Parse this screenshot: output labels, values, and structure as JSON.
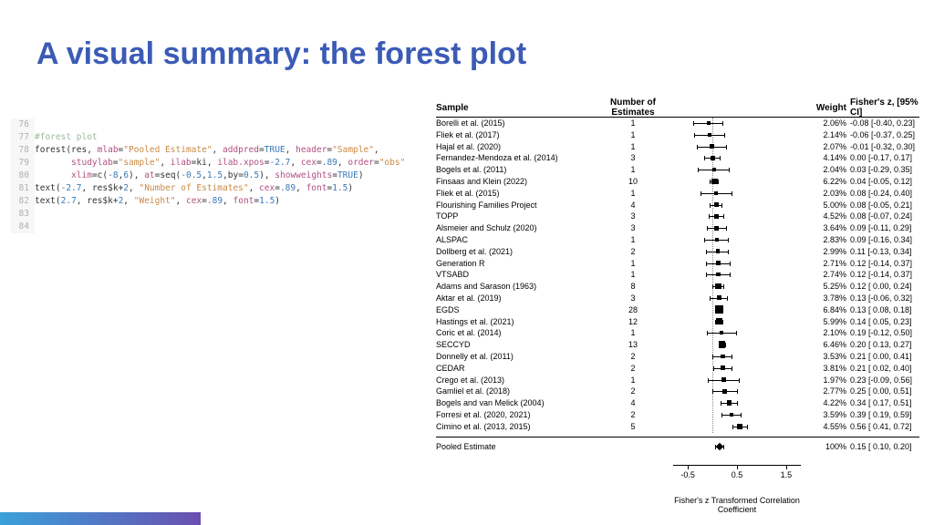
{
  "title": "A visual summary: the forest plot",
  "code": {
    "lines": [
      {
        "n": "76",
        "seg": [
          [
            "kw",
            ""
          ]
        ]
      },
      {
        "n": "77",
        "seg": [
          [
            "cmt",
            "#forest plot"
          ]
        ]
      },
      {
        "n": "78",
        "seg": [
          [
            "fn",
            "forest"
          ],
          [
            "kw",
            "(res, "
          ],
          [
            "arg",
            "mlab"
          ],
          [
            "kw",
            "="
          ],
          [
            "str",
            "\"Pooled Estimate\""
          ],
          [
            "kw",
            ", "
          ],
          [
            "arg",
            "addpred"
          ],
          [
            "kw",
            "="
          ],
          [
            "bool",
            "TRUE"
          ],
          [
            "kw",
            ", "
          ],
          [
            "arg",
            "header"
          ],
          [
            "kw",
            "="
          ],
          [
            "str",
            "\"Sample\""
          ],
          [
            "kw",
            ", "
          ]
        ]
      },
      {
        "n": "79",
        "seg": [
          [
            "kw",
            "       "
          ],
          [
            "arg",
            "studylab"
          ],
          [
            "kw",
            "="
          ],
          [
            "str",
            "\"sample\""
          ],
          [
            "kw",
            ", "
          ],
          [
            "arg",
            "ilab"
          ],
          [
            "kw",
            "=ki, "
          ],
          [
            "arg",
            "ilab.xpos"
          ],
          [
            "kw",
            "="
          ],
          [
            "num",
            "-2.7"
          ],
          [
            "kw",
            ", "
          ],
          [
            "arg",
            "cex"
          ],
          [
            "kw",
            "="
          ],
          [
            "num",
            ".89"
          ],
          [
            "kw",
            ", "
          ],
          [
            "arg",
            "order"
          ],
          [
            "kw",
            "="
          ],
          [
            "str",
            "\"obs\""
          ]
        ]
      },
      {
        "n": "80",
        "seg": [
          [
            "kw",
            "       "
          ],
          [
            "arg",
            "xlim"
          ],
          [
            "kw",
            "=c("
          ],
          [
            "num",
            "-8"
          ],
          [
            "kw",
            ","
          ],
          [
            "num",
            "6"
          ],
          [
            "kw",
            "), "
          ],
          [
            "arg",
            "at"
          ],
          [
            "kw",
            "=seq("
          ],
          [
            "num",
            "-0.5"
          ],
          [
            "kw",
            ","
          ],
          [
            "num",
            "1.5"
          ],
          [
            "kw",
            ",by="
          ],
          [
            "num",
            "0.5"
          ],
          [
            "kw",
            "), "
          ],
          [
            "arg",
            "showweights"
          ],
          [
            "kw",
            "="
          ],
          [
            "bool",
            "TRUE"
          ],
          [
            "kw",
            ")"
          ]
        ]
      },
      {
        "n": "81",
        "seg": [
          [
            "fn",
            "text"
          ],
          [
            "kw",
            "("
          ],
          [
            "num",
            "-2.7"
          ],
          [
            "kw",
            ", res$k+"
          ],
          [
            "num",
            "2"
          ],
          [
            "kw",
            ", "
          ],
          [
            "str",
            "\"Number of Estimates\""
          ],
          [
            "kw",
            ", "
          ],
          [
            "arg",
            "cex"
          ],
          [
            "kw",
            "="
          ],
          [
            "num",
            ".89"
          ],
          [
            "kw",
            ", "
          ],
          [
            "arg",
            "font"
          ],
          [
            "kw",
            "="
          ],
          [
            "num",
            "1.5"
          ],
          [
            "kw",
            ")"
          ]
        ]
      },
      {
        "n": "82",
        "seg": [
          [
            "fn",
            "text"
          ],
          [
            "kw",
            "("
          ],
          [
            "num",
            "2.7"
          ],
          [
            "kw",
            ", res$k+"
          ],
          [
            "num",
            "2"
          ],
          [
            "kw",
            ", "
          ],
          [
            "str",
            "\"Weight\""
          ],
          [
            "kw",
            ", "
          ],
          [
            "arg",
            "cex"
          ],
          [
            "kw",
            "="
          ],
          [
            "num",
            ".89"
          ],
          [
            "kw",
            ", "
          ],
          [
            "arg",
            "font"
          ],
          [
            "kw",
            "="
          ],
          [
            "num",
            "1.5"
          ],
          [
            "kw",
            ")"
          ]
        ]
      },
      {
        "n": "83",
        "seg": [
          [
            "kw",
            ""
          ]
        ]
      },
      {
        "n": "84",
        "seg": [
          [
            "kw",
            ""
          ]
        ]
      }
    ]
  },
  "plot": {
    "headers": {
      "c1": "Sample",
      "c2": "Number of Estimates",
      "c4": "Weight",
      "c5": "Fisher's z, [95% CI]"
    },
    "xmin": -0.8,
    "xmax": 1.8,
    "pxwidth": 140,
    "ticks": [
      -0.5,
      0.5,
      1.5
    ],
    "xlabel": "Fisher's z Transformed Correlation Coefficient",
    "zero": 0,
    "rows": [
      {
        "s": "Borelli et al. (2015)",
        "n": 1,
        "w": "2.06%",
        "z": -0.08,
        "lo": -0.4,
        "hi": 0.23,
        "k": 1
      },
      {
        "s": "Fliek et al. (2017)",
        "n": 1,
        "w": "2.14%",
        "z": -0.06,
        "lo": -0.37,
        "hi": 0.25,
        "k": 1
      },
      {
        "s": "Hajal et al. (2020)",
        "n": 1,
        "w": "2.07%",
        "z": -0.01,
        "lo": -0.32,
        "hi": 0.3,
        "k": 1
      },
      {
        "s": "Fernandez-Mendoza et al. (2014)",
        "n": 3,
        "w": "4.14%",
        "z": -0.0,
        "lo": -0.17,
        "hi": 0.17,
        "k": 3
      },
      {
        "s": "Bogels et al. (2011)",
        "n": 1,
        "w": "2.04%",
        "z": 0.03,
        "lo": -0.29,
        "hi": 0.35,
        "k": 1
      },
      {
        "s": "Finsaas and Klein (2022)",
        "n": 10,
        "w": "6.22%",
        "z": 0.04,
        "lo": -0.05,
        "hi": 0.12,
        "k": 10
      },
      {
        "s": "Fliek et al. (2015)",
        "n": 1,
        "w": "2.03%",
        "z": 0.08,
        "lo": -0.24,
        "hi": 0.4,
        "k": 1
      },
      {
        "s": "Flourishing Families Project",
        "n": 4,
        "w": "5.00%",
        "z": 0.08,
        "lo": -0.05,
        "hi": 0.21,
        "k": 4
      },
      {
        "s": "TOPP",
        "n": 3,
        "w": "4.52%",
        "z": 0.08,
        "lo": -0.07,
        "hi": 0.24,
        "k": 3
      },
      {
        "s": "Alsmeier and Schulz (2020)",
        "n": 3,
        "w": "3.64%",
        "z": 0.09,
        "lo": -0.11,
        "hi": 0.29,
        "k": 3
      },
      {
        "s": "ALSPAC",
        "n": 1,
        "w": "2.83%",
        "z": 0.09,
        "lo": -0.16,
        "hi": 0.34,
        "k": 1
      },
      {
        "s": "Dollberg et al. (2021)",
        "n": 2,
        "w": "2.99%",
        "z": 0.11,
        "lo": -0.13,
        "hi": 0.34,
        "k": 2
      },
      {
        "s": "Generation R",
        "n": 1,
        "w": "2.71%",
        "z": 0.12,
        "lo": -0.14,
        "hi": 0.37,
        "k": 1
      },
      {
        "s": "VTSABD",
        "n": 1,
        "w": "2.74%",
        "z": 0.12,
        "lo": -0.14,
        "hi": 0.37,
        "k": 1
      },
      {
        "s": "Adams and Sarason (1963)",
        "n": 8,
        "w": "5.25%",
        "z": 0.12,
        "lo": -0.0,
        "hi": 0.24,
        "k": 8
      },
      {
        "s": "Aktar et al. (2019)",
        "n": 3,
        "w": "3.78%",
        "z": 0.13,
        "lo": -0.06,
        "hi": 0.32,
        "k": 3
      },
      {
        "s": "EGDS",
        "n": 28,
        "w": "6.84%",
        "z": 0.13,
        "lo": 0.08,
        "hi": 0.18,
        "k": 28
      },
      {
        "s": "Hastings et al. (2021)",
        "n": 12,
        "w": "5.99%",
        "z": 0.14,
        "lo": 0.05,
        "hi": 0.23,
        "k": 12
      },
      {
        "s": "Coric et al. (2014)",
        "n": 1,
        "w": "2.10%",
        "z": 0.19,
        "lo": -0.12,
        "hi": 0.5,
        "k": 1
      },
      {
        "s": "SECCYD",
        "n": 13,
        "w": "6.46%",
        "z": 0.2,
        "lo": 0.13,
        "hi": 0.27,
        "k": 13
      },
      {
        "s": "Donnelly et al. (2011)",
        "n": 2,
        "w": "3.53%",
        "z": 0.21,
        "lo": 0.0,
        "hi": 0.41,
        "k": 2
      },
      {
        "s": "CEDAR",
        "n": 2,
        "w": "3.81%",
        "z": 0.21,
        "lo": 0.02,
        "hi": 0.4,
        "k": 2
      },
      {
        "s": "Crego et al. (2013)",
        "n": 1,
        "w": "1.97%",
        "z": 0.23,
        "lo": -0.09,
        "hi": 0.56,
        "k": 1
      },
      {
        "s": "Gamliel et al. (2018)",
        "n": 2,
        "w": "2.77%",
        "z": 0.25,
        "lo": 0.0,
        "hi": 0.51,
        "k": 2
      },
      {
        "s": "Bogels and van Melick (2004)",
        "n": 4,
        "w": "4.22%",
        "z": 0.34,
        "lo": 0.17,
        "hi": 0.51,
        "k": 4
      },
      {
        "s": "Forresi et al. (2020, 2021)",
        "n": 2,
        "w": "3.59%",
        "z": 0.39,
        "lo": 0.19,
        "hi": 0.59,
        "k": 2
      },
      {
        "s": "Cimino et al. (2013, 2015)",
        "n": 5,
        "w": "4.55%",
        "z": 0.56,
        "lo": 0.41,
        "hi": 0.72,
        "k": 5
      }
    ],
    "pooled": {
      "s": "Pooled Estimate",
      "w": "100%",
      "z": 0.15,
      "lo": 0.1,
      "hi": 0.2
    }
  }
}
